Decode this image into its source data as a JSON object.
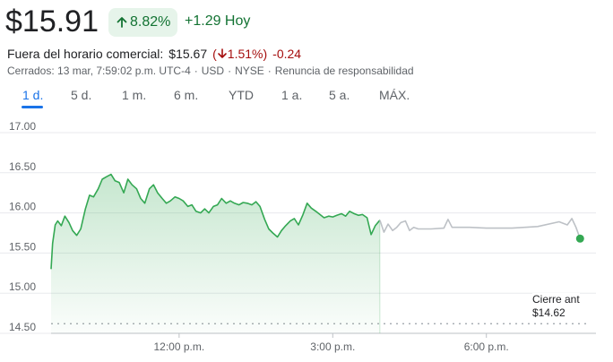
{
  "quote": {
    "price": "$15.91",
    "pct_change": "8.82%",
    "abs_change": "+1.29 Hoy",
    "after_hours_label": "Fuera del horario comercial:",
    "after_hours_price": "$15.67",
    "after_hours_pct": "1.51%",
    "after_hours_change": "-0.24",
    "meta_closed": "Cerrados: 13 mar, 7:59:02 p.m. UTC-4",
    "meta_currency": "USD",
    "meta_exchange": "NYSE",
    "meta_disclaimer": "Renuncia de responsabilidad",
    "colors": {
      "up": "#137333",
      "down": "#a50e0e",
      "accent": "#1a73e8",
      "chart_line": "#34a853",
      "after_hours_line": "#bdc1c6"
    }
  },
  "ranges": [
    "1 d.",
    "5 d.",
    "1 m.",
    "6 m.",
    "YTD",
    "1 a.",
    "5 a.",
    "MÁX."
  ],
  "active_range": "1 d.",
  "prev_close": {
    "label": "Cierre ant",
    "value": "$14.62"
  },
  "chart_data": {
    "type": "area",
    "title": "",
    "xlabel": "",
    "ylabel": "",
    "ylim": [
      14.5,
      17.0
    ],
    "y_ticks": [
      "17.00",
      "16.50",
      "16.00",
      "15.50",
      "15.00",
      "14.50"
    ],
    "x_ticks": [
      {
        "label": "12:00 p.m.",
        "t": 12.0
      },
      {
        "label": "3:00 p.m.",
        "t": 15.0
      },
      {
        "label": "6:00 p.m.",
        "t": 18.0
      }
    ],
    "xlim_hours": [
      9.5,
      20.0
    ],
    "grid": true,
    "prev_close_value": 14.62,
    "series": [
      {
        "session": "regular",
        "points": [
          [
            9.5,
            15.3
          ],
          [
            9.53,
            15.62
          ],
          [
            9.58,
            15.85
          ],
          [
            9.63,
            15.9
          ],
          [
            9.7,
            15.84
          ],
          [
            9.77,
            15.96
          ],
          [
            9.85,
            15.88
          ],
          [
            9.92,
            15.78
          ],
          [
            10.0,
            15.72
          ],
          [
            10.08,
            15.8
          ],
          [
            10.17,
            16.05
          ],
          [
            10.25,
            16.22
          ],
          [
            10.33,
            16.2
          ],
          [
            10.42,
            16.3
          ],
          [
            10.5,
            16.42
          ],
          [
            10.58,
            16.45
          ],
          [
            10.67,
            16.48
          ],
          [
            10.75,
            16.4
          ],
          [
            10.83,
            16.38
          ],
          [
            10.92,
            16.25
          ],
          [
            11.0,
            16.42
          ],
          [
            11.08,
            16.35
          ],
          [
            11.17,
            16.3
          ],
          [
            11.25,
            16.18
          ],
          [
            11.33,
            16.12
          ],
          [
            11.42,
            16.3
          ],
          [
            11.5,
            16.35
          ],
          [
            11.58,
            16.25
          ],
          [
            11.67,
            16.18
          ],
          [
            11.75,
            16.12
          ],
          [
            11.83,
            16.15
          ],
          [
            11.92,
            16.2
          ],
          [
            12.0,
            16.18
          ],
          [
            12.08,
            16.15
          ],
          [
            12.17,
            16.08
          ],
          [
            12.25,
            16.1
          ],
          [
            12.33,
            16.02
          ],
          [
            12.42,
            16.0
          ],
          [
            12.5,
            16.05
          ],
          [
            12.58,
            16.0
          ],
          [
            12.67,
            16.08
          ],
          [
            12.75,
            16.1
          ],
          [
            12.83,
            16.18
          ],
          [
            12.92,
            16.12
          ],
          [
            13.0,
            16.15
          ],
          [
            13.08,
            16.12
          ],
          [
            13.17,
            16.1
          ],
          [
            13.25,
            16.13
          ],
          [
            13.33,
            16.12
          ],
          [
            13.42,
            16.1
          ],
          [
            13.5,
            16.14
          ],
          [
            13.58,
            16.08
          ],
          [
            13.67,
            15.92
          ],
          [
            13.75,
            15.8
          ],
          [
            13.83,
            15.75
          ],
          [
            13.92,
            15.7
          ],
          [
            14.0,
            15.78
          ],
          [
            14.08,
            15.84
          ],
          [
            14.17,
            15.9
          ],
          [
            14.25,
            15.93
          ],
          [
            14.33,
            15.85
          ],
          [
            14.42,
            15.98
          ],
          [
            14.5,
            16.12
          ],
          [
            14.58,
            16.06
          ],
          [
            14.67,
            16.02
          ],
          [
            14.75,
            15.98
          ],
          [
            14.83,
            15.94
          ],
          [
            14.92,
            15.96
          ],
          [
            15.0,
            15.95
          ],
          [
            15.08,
            15.97
          ],
          [
            15.17,
            15.99
          ],
          [
            15.25,
            15.96
          ],
          [
            15.33,
            16.02
          ],
          [
            15.42,
            15.99
          ],
          [
            15.5,
            15.97
          ],
          [
            15.58,
            15.98
          ],
          [
            15.67,
            15.94
          ],
          [
            15.75,
            15.73
          ],
          [
            15.83,
            15.84
          ],
          [
            15.92,
            15.91
          ]
        ]
      },
      {
        "session": "after_hours",
        "points": [
          [
            16.0,
            15.76
          ],
          [
            16.08,
            15.86
          ],
          [
            16.17,
            15.78
          ],
          [
            16.25,
            15.82
          ],
          [
            16.33,
            15.88
          ],
          [
            16.42,
            15.9
          ],
          [
            16.5,
            15.78
          ],
          [
            16.58,
            15.82
          ],
          [
            16.67,
            15.8
          ],
          [
            16.92,
            15.8
          ],
          [
            17.17,
            15.81
          ],
          [
            17.25,
            15.92
          ],
          [
            17.33,
            15.82
          ],
          [
            17.67,
            15.82
          ],
          [
            18.0,
            15.81
          ],
          [
            18.5,
            15.81
          ],
          [
            19.0,
            15.83
          ],
          [
            19.42,
            15.89
          ],
          [
            19.58,
            15.85
          ],
          [
            19.67,
            15.93
          ],
          [
            19.75,
            15.82
          ],
          [
            19.83,
            15.68
          ]
        ]
      }
    ]
  }
}
